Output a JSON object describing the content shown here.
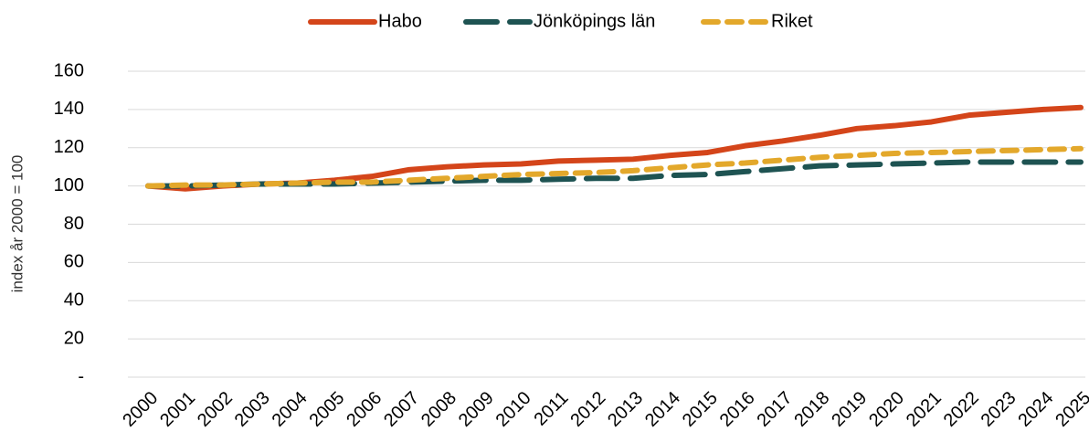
{
  "chart_data": {
    "type": "line",
    "y_label": "index år 2000 = 100",
    "x": [
      2000,
      2001,
      2002,
      2003,
      2004,
      2005,
      2006,
      2007,
      2008,
      2009,
      2010,
      2011,
      2012,
      2013,
      2014,
      2015,
      2016,
      2017,
      2018,
      2019,
      2020,
      2021,
      2022,
      2023,
      2024,
      2025
    ],
    "series": [
      {
        "name": "Habo",
        "color": "#d4451a",
        "style": "solid",
        "values": [
          100,
          98.5,
          100,
          101,
          101.5,
          103,
          105,
          108.5,
          110,
          111,
          111.5,
          113,
          113.5,
          114,
          116,
          117.5,
          121,
          123.5,
          126.5,
          130,
          131.5,
          133.5,
          137,
          138.5,
          140,
          141
        ]
      },
      {
        "name": "Jönköpings län",
        "color": "#1e5352",
        "style": "long-dash",
        "values": [
          100,
          100,
          100.5,
          101,
          101,
          101,
          101.5,
          102,
          102.5,
          103,
          103,
          103.5,
          104,
          104,
          105.5,
          106,
          107.5,
          109,
          110.5,
          111,
          111.5,
          112,
          112.5,
          112.5,
          112.5,
          112.5
        ]
      },
      {
        "name": "Riket",
        "color": "#e3a82b",
        "style": "short-dash",
        "values": [
          100,
          100.5,
          100.5,
          101,
          101.5,
          102,
          102,
          103,
          104,
          105,
          106,
          106.5,
          107,
          108,
          109.5,
          111,
          112,
          113.5,
          115,
          116,
          117,
          117.5,
          118,
          118.5,
          119,
          119.5
        ]
      }
    ],
    "ylim": [
      0,
      160
    ],
    "yticks": [
      {
        "value": 0,
        "label": "-"
      },
      20,
      40,
      60,
      80,
      100,
      120,
      140,
      160
    ],
    "grid": true,
    "legend": "top"
  }
}
